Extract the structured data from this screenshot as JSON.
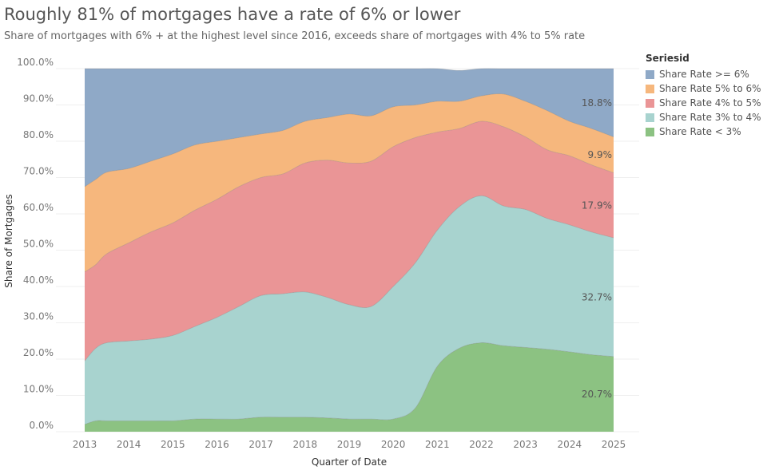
{
  "title": "Roughly 81% of mortgages have a rate of 6% or lower",
  "subtitle": "Share of mortgages with 6% + at the highest level since 2016, exceeds share of mortgages with 4% to 5% rate",
  "legend": {
    "title": "Seriesid",
    "items": [
      {
        "label": "Share Rate >= 6%",
        "color": "#8fa9c7"
      },
      {
        "label": "Share Rate 5% to 6%",
        "color": "#f6b77d"
      },
      {
        "label": "Share Rate 4% to 5%",
        "color": "#ea9596"
      },
      {
        "label": "Share Rate 3% to 4%",
        "color": "#a8d3cf"
      },
      {
        "label": "Share Rate < 3%",
        "color": "#8cc282"
      }
    ]
  },
  "chart_data": {
    "type": "area",
    "stacked": true,
    "xlabel": "Quarter of Date",
    "ylabel": "Share of Mortgages",
    "xlim": [
      2013,
      2025
    ],
    "ylim": [
      0,
      100
    ],
    "x_ticks": [
      "2013",
      "2014",
      "2015",
      "2016",
      "2017",
      "2018",
      "2019",
      "2020",
      "2021",
      "2022",
      "2023",
      "2024",
      "2025"
    ],
    "y_ticks": [
      "0.0%",
      "10.0%",
      "20.0%",
      "30.0%",
      "40.0%",
      "50.0%",
      "60.0%",
      "70.0%",
      "80.0%",
      "90.0%",
      "100.0%"
    ],
    "grid": true,
    "legend_position": "right",
    "x": [
      2013,
      2013.25,
      2013.5,
      2014,
      2014.5,
      2015,
      2015.5,
      2016,
      2016.5,
      2017,
      2017.5,
      2018,
      2018.5,
      2019,
      2019.5,
      2020,
      2020.5,
      2021,
      2021.5,
      2022,
      2022.5,
      2023,
      2023.5,
      2024,
      2024.5,
      2025
    ],
    "series": [
      {
        "name": "Share Rate < 3%",
        "color": "#8cc282",
        "values": [
          2.0,
          3.0,
          3.0,
          3.0,
          3.0,
          3.0,
          3.5,
          3.5,
          3.5,
          4.0,
          4.0,
          4.0,
          3.8,
          3.5,
          3.5,
          3.5,
          6.5,
          18.0,
          23.0,
          24.5,
          23.7,
          23.2,
          22.7,
          22.0,
          21.2,
          20.7
        ]
      },
      {
        "name": "Share Rate 3% to 4%",
        "color": "#a8d3cf",
        "values": [
          17.5,
          20.0,
          21.5,
          22.0,
          22.5,
          23.5,
          25.5,
          28.0,
          31.0,
          33.5,
          34.0,
          34.5,
          33.2,
          31.5,
          31.0,
          36.5,
          40.0,
          37.5,
          39.0,
          40.5,
          38.5,
          38.0,
          36.0,
          35.0,
          33.8,
          32.7
        ]
      },
      {
        "name": "Share Rate 4% to 5%",
        "color": "#ea9596",
        "values": [
          24.5,
          23.0,
          24.5,
          27.0,
          29.5,
          31.0,
          32.0,
          32.5,
          33.0,
          32.5,
          33.0,
          35.5,
          37.8,
          39.0,
          40.0,
          38.5,
          34.5,
          27.0,
          21.5,
          20.5,
          21.8,
          20.0,
          18.9,
          19.0,
          18.5,
          17.9
        ]
      },
      {
        "name": "Share Rate 5% to 6%",
        "color": "#f6b77d",
        "values": [
          23.5,
          23.5,
          22.5,
          20.5,
          19.5,
          19.0,
          18.0,
          16.0,
          13.5,
          12.0,
          12.0,
          11.5,
          11.7,
          13.5,
          12.5,
          11.0,
          9.0,
          8.5,
          7.5,
          7.0,
          9.0,
          9.8,
          10.8,
          9.5,
          10.0,
          9.9
        ]
      },
      {
        "name": "Share Rate >= 6%",
        "color": "#8fa9c7",
        "values": [
          32.5,
          30.5,
          28.5,
          27.5,
          25.5,
          23.5,
          21.0,
          20.0,
          19.0,
          18.0,
          17.0,
          14.5,
          13.5,
          12.5,
          13.0,
          10.5,
          10.0,
          9.0,
          8.5,
          7.5,
          7.0,
          9.0,
          11.6,
          14.5,
          16.5,
          18.8
        ]
      }
    ],
    "end_labels": [
      "20.7%",
      "32.7%",
      "17.9%",
      "9.9%",
      "18.8%"
    ]
  }
}
